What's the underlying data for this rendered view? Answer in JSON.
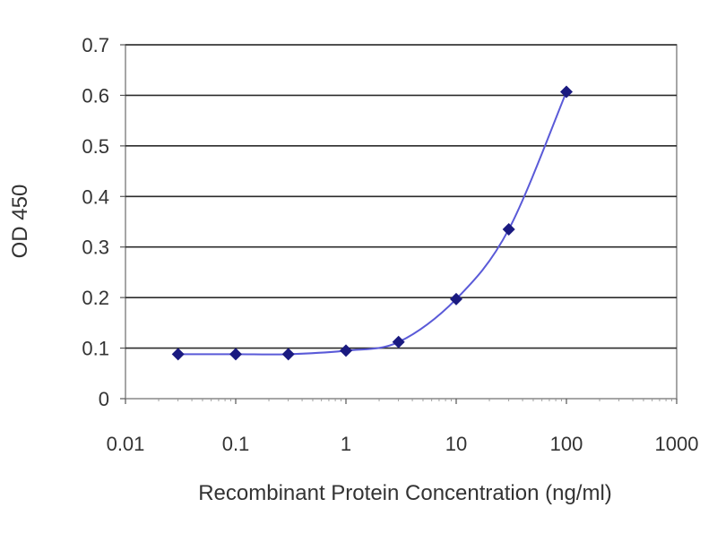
{
  "chart_data": {
    "type": "scatter",
    "xscale": "log",
    "xlabel": "Recombinant Protein Concentration (ng/ml)",
    "ylabel": "OD 450",
    "xlim": [
      0.01,
      1000
    ],
    "ylim": [
      0,
      0.7
    ],
    "x_ticks": [
      0.01,
      0.1,
      1,
      10,
      100,
      1000
    ],
    "x_tick_labels": [
      "0.01",
      "0.1",
      "1",
      "10",
      "100",
      "1000"
    ],
    "y_ticks": [
      0,
      0.1,
      0.2,
      0.3,
      0.4,
      0.5,
      0.6,
      0.7
    ],
    "y_tick_labels": [
      "0",
      "0.1",
      "0.2",
      "0.3",
      "0.4",
      "0.5",
      "0.6",
      "0.7"
    ],
    "grid": "horizontal",
    "legend": "none",
    "series": [
      {
        "x": [
          0.03,
          0.1,
          0.3,
          1,
          3,
          10,
          30,
          100
        ],
        "y": [
          0.088,
          0.088,
          0.088,
          0.095,
          0.112,
          0.197,
          0.335,
          0.607
        ],
        "marker": "diamond",
        "line": "smooth",
        "color": "#1a1a80"
      }
    ],
    "colors": {
      "series": "#1a1a80",
      "line": "#5a5ad8",
      "grid": "#2b2b2b",
      "frame": "#888888"
    }
  }
}
